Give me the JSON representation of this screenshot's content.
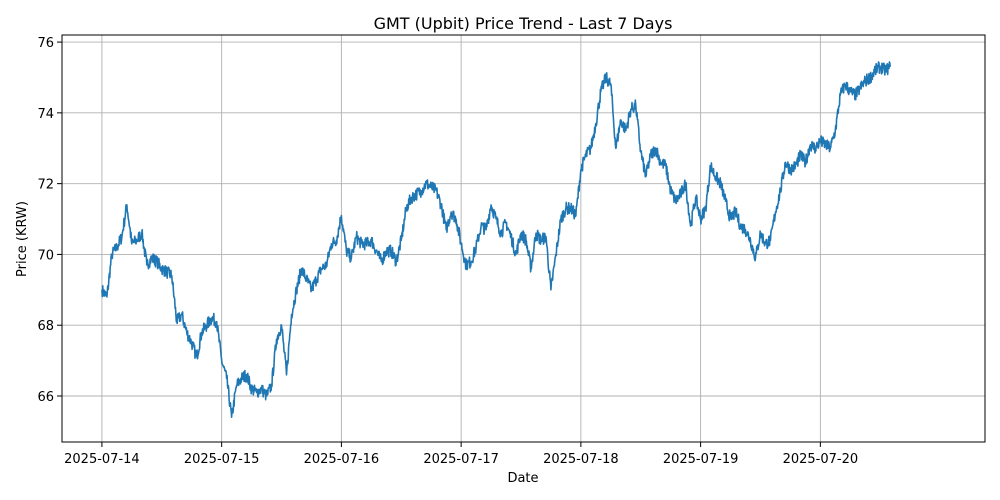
{
  "chart_data": {
    "type": "line",
    "title": "GMT (Upbit) Price Trend - Last 7 Days",
    "xlabel": "Date",
    "ylabel": "Price (KRW)",
    "x_ticks": [
      "2025-07-14",
      "2025-07-15",
      "2025-07-16",
      "2025-07-17",
      "2025-07-18",
      "2025-07-19",
      "2025-07-20"
    ],
    "y_ticks": [
      66,
      68,
      70,
      72,
      74,
      76
    ],
    "xlim": [
      "2025-07-13 16:00",
      "2025-07-21 09:00"
    ],
    "ylim": [
      64.7,
      76.2
    ],
    "grid": true,
    "line_color": "#1f77b4",
    "series": [
      {
        "x": [
          "2025-07-14 00:00",
          "2025-07-14 01:00",
          "2025-07-14 02:00",
          "2025-07-14 03:00",
          "2025-07-14 04:00",
          "2025-07-14 05:00",
          "2025-07-14 06:00",
          "2025-07-14 07:00",
          "2025-07-14 08:00",
          "2025-07-14 09:00",
          "2025-07-14 10:00",
          "2025-07-14 11:00",
          "2025-07-14 12:00",
          "2025-07-14 13:00",
          "2025-07-14 14:00",
          "2025-07-14 15:00",
          "2025-07-14 16:00",
          "2025-07-14 17:00",
          "2025-07-14 18:00",
          "2025-07-14 19:00",
          "2025-07-14 20:00",
          "2025-07-14 21:00",
          "2025-07-14 22:00",
          "2025-07-14 23:00",
          "2025-07-15 00:00",
          "2025-07-15 01:00",
          "2025-07-15 02:00",
          "2025-07-15 03:00",
          "2025-07-15 04:00",
          "2025-07-15 05:00",
          "2025-07-15 06:00",
          "2025-07-15 07:00",
          "2025-07-15 08:00",
          "2025-07-15 09:00",
          "2025-07-15 10:00",
          "2025-07-15 11:00",
          "2025-07-15 12:00",
          "2025-07-15 13:00",
          "2025-07-15 14:00",
          "2025-07-15 15:00",
          "2025-07-15 16:00",
          "2025-07-15 17:00",
          "2025-07-15 18:00",
          "2025-07-15 19:00",
          "2025-07-15 20:00",
          "2025-07-15 21:00",
          "2025-07-15 22:00",
          "2025-07-15 23:00",
          "2025-07-16 00:00",
          "2025-07-16 01:00",
          "2025-07-16 02:00",
          "2025-07-16 03:00",
          "2025-07-16 04:00",
          "2025-07-16 05:00",
          "2025-07-16 06:00",
          "2025-07-16 07:00",
          "2025-07-16 08:00",
          "2025-07-16 09:00",
          "2025-07-16 10:00",
          "2025-07-16 11:00",
          "2025-07-16 12:00",
          "2025-07-16 13:00",
          "2025-07-16 14:00",
          "2025-07-16 15:00",
          "2025-07-16 16:00",
          "2025-07-16 17:00",
          "2025-07-16 18:00",
          "2025-07-16 19:00",
          "2025-07-16 20:00",
          "2025-07-16 21:00",
          "2025-07-16 22:00",
          "2025-07-16 23:00",
          "2025-07-17 00:00",
          "2025-07-17 01:00",
          "2025-07-17 02:00",
          "2025-07-17 03:00",
          "2025-07-17 04:00",
          "2025-07-17 05:00",
          "2025-07-17 06:00",
          "2025-07-17 07:00",
          "2025-07-17 08:00",
          "2025-07-17 09:00",
          "2025-07-17 10:00",
          "2025-07-17 11:00",
          "2025-07-17 12:00",
          "2025-07-17 13:00",
          "2025-07-17 14:00",
          "2025-07-17 15:00",
          "2025-07-17 16:00",
          "2025-07-17 17:00",
          "2025-07-17 18:00",
          "2025-07-17 19:00",
          "2025-07-17 20:00",
          "2025-07-17 21:00",
          "2025-07-17 22:00",
          "2025-07-17 23:00",
          "2025-07-18 00:00",
          "2025-07-18 01:00",
          "2025-07-18 02:00",
          "2025-07-18 03:00",
          "2025-07-18 04:00",
          "2025-07-18 05:00",
          "2025-07-18 06:00",
          "2025-07-18 07:00",
          "2025-07-18 08:00",
          "2025-07-18 09:00",
          "2025-07-18 10:00",
          "2025-07-18 11:00",
          "2025-07-18 12:00",
          "2025-07-18 13:00",
          "2025-07-18 14:00",
          "2025-07-18 15:00",
          "2025-07-18 16:00",
          "2025-07-18 17:00",
          "2025-07-18 18:00",
          "2025-07-18 19:00",
          "2025-07-18 20:00",
          "2025-07-18 21:00",
          "2025-07-18 22:00",
          "2025-07-18 23:00",
          "2025-07-19 00:00",
          "2025-07-19 01:00",
          "2025-07-19 02:00",
          "2025-07-19 03:00",
          "2025-07-19 04:00",
          "2025-07-19 05:00",
          "2025-07-19 06:00",
          "2025-07-19 07:00",
          "2025-07-19 08:00",
          "2025-07-19 09:00",
          "2025-07-19 10:00",
          "2025-07-19 11:00",
          "2025-07-19 12:00",
          "2025-07-19 13:00",
          "2025-07-19 14:00",
          "2025-07-19 15:00",
          "2025-07-19 16:00",
          "2025-07-19 17:00",
          "2025-07-19 18:00",
          "2025-07-19 19:00",
          "2025-07-19 20:00",
          "2025-07-19 21:00",
          "2025-07-19 22:00",
          "2025-07-19 23:00",
          "2025-07-20 00:00",
          "2025-07-20 01:00",
          "2025-07-20 02:00",
          "2025-07-20 03:00",
          "2025-07-20 04:00",
          "2025-07-20 05:00",
          "2025-07-20 06:00",
          "2025-07-20 07:00",
          "2025-07-20 08:00",
          "2025-07-20 09:00",
          "2025-07-20 10:00",
          "2025-07-20 11:00",
          "2025-07-20 12:00",
          "2025-07-20 13:00",
          "2025-07-20 14:00"
        ],
        "y": [
          69.0,
          68.8,
          70.0,
          70.2,
          70.5,
          71.4,
          70.3,
          70.4,
          70.6,
          69.7,
          69.9,
          69.8,
          69.6,
          69.5,
          69.4,
          68.1,
          68.3,
          67.8,
          67.5,
          67.1,
          67.8,
          68.0,
          68.2,
          68.1,
          67.0,
          66.5,
          65.4,
          66.3,
          66.5,
          66.6,
          66.2,
          66.1,
          66.2,
          66.0,
          66.3,
          67.6,
          68.0,
          66.6,
          68.3,
          69.0,
          69.6,
          69.3,
          69.0,
          69.3,
          69.6,
          69.7,
          70.3,
          70.4,
          71.1,
          70.1,
          69.9,
          70.5,
          70.3,
          70.3,
          70.4,
          70.1,
          69.8,
          70.1,
          70.1,
          69.8,
          70.4,
          71.3,
          71.6,
          71.7,
          71.8,
          72.0,
          71.9,
          71.8,
          71.4,
          70.7,
          71.2,
          71.0,
          70.3,
          69.7,
          69.8,
          70.2,
          70.8,
          70.7,
          71.4,
          71.0,
          70.6,
          70.9,
          70.5,
          70.0,
          70.6,
          70.4,
          69.6,
          70.6,
          70.4,
          70.5,
          69.0,
          70.0,
          71.0,
          71.3,
          71.3,
          71.1,
          72.4,
          72.8,
          73.0,
          73.7,
          74.6,
          75.0,
          74.8,
          73.0,
          73.8,
          73.5,
          74.1,
          74.2,
          72.9,
          72.2,
          72.8,
          73.0,
          72.6,
          72.5,
          71.8,
          71.5,
          71.7,
          72.0,
          70.8,
          71.6,
          71.0,
          71.3,
          72.5,
          72.2,
          72.0,
          71.5,
          71.0,
          71.2,
          70.8,
          70.7,
          70.4,
          69.9,
          70.6,
          70.3,
          70.4,
          71.2,
          71.8,
          72.6,
          72.4,
          72.5,
          72.8,
          72.6,
          73.1,
          73.0,
          73.2,
          73.1,
          73.0,
          73.5,
          74.5,
          74.8,
          74.6,
          74.5,
          74.7,
          74.9,
          75.0,
          75.2,
          75.3,
          75.2,
          75.3
        ]
      }
    ]
  }
}
